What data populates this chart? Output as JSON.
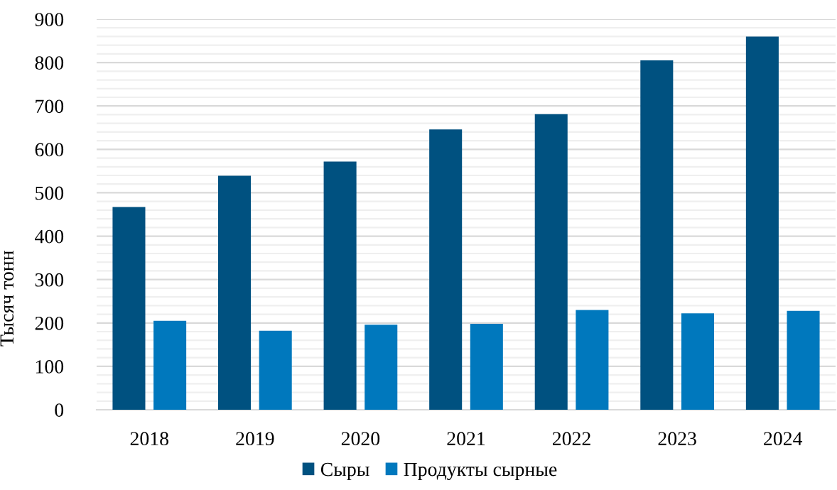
{
  "chart_data": {
    "type": "bar",
    "ylabel": "Тысяч тонн",
    "categories": [
      "2018",
      "2019",
      "2020",
      "2021",
      "2022",
      "2023",
      "2024"
    ],
    "series": [
      {
        "name": "Сыры",
        "color": "#005180",
        "values": [
          467,
          539,
          572,
          646,
          681,
          805,
          860
        ]
      },
      {
        "name": "Продукты сырные",
        "color": "#0078bd",
        "values": [
          205,
          182,
          196,
          198,
          230,
          222,
          228
        ]
      }
    ],
    "ylim": [
      0,
      900
    ],
    "yticks": [
      0,
      {
        "value": 20,
        "label": null
      },
      {
        "value": 40,
        "label": null
      },
      {
        "value": 60,
        "label": null
      },
      {
        "value": 80,
        "label": null
      },
      100,
      {
        "value": 120,
        "label": null
      },
      {
        "value": 140,
        "label": null
      },
      {
        "value": 160,
        "label": null
      },
      {
        "value": 180,
        "label": null
      },
      200,
      {
        "value": 220,
        "label": null
      },
      {
        "value": 240,
        "label": null
      },
      {
        "value": 260,
        "label": null
      },
      {
        "value": 280,
        "label": null
      },
      300,
      {
        "value": 320,
        "label": null
      },
      {
        "value": 340,
        "label": null
      },
      {
        "value": 360,
        "label": null
      },
      {
        "value": 380,
        "label": null
      },
      400,
      {
        "value": 420,
        "label": null
      },
      {
        "value": 440,
        "label": null
      },
      {
        "value": 460,
        "label": null
      },
      {
        "value": 480,
        "label": null
      },
      500,
      {
        "value": 520,
        "label": null
      },
      {
        "value": 540,
        "label": null
      },
      {
        "value": 560,
        "label": null
      },
      {
        "value": 580,
        "label": null
      },
      600,
      {
        "value": 620,
        "label": null
      },
      {
        "value": 640,
        "label": null
      },
      {
        "value": 660,
        "label": null
      },
      {
        "value": 680,
        "label": null
      },
      700,
      {
        "value": 720,
        "label": null
      },
      {
        "value": 740,
        "label": null
      },
      {
        "value": 760,
        "label": null
      },
      {
        "value": 780,
        "label": null
      },
      800,
      {
        "value": 820,
        "label": null
      },
      {
        "value": 840,
        "label": null
      },
      {
        "value": 860,
        "label": null
      },
      {
        "value": 880,
        "label": null
      },
      900
    ],
    "grid": "y",
    "legend": "bottom"
  }
}
